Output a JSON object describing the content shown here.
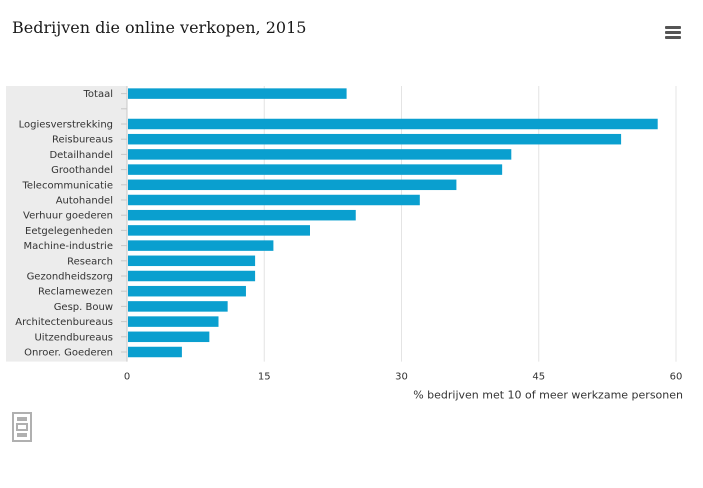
{
  "title": "Bedrijven die online verkopen, 2015",
  "menu_icon": "hamburger-menu-icon",
  "logo_icon": "cbs-logo-icon",
  "chart_data": {
    "type": "bar",
    "orientation": "horizontal",
    "title": "Bedrijven die online verkopen, 2015",
    "xlabel": "% bedrijven met 10 of meer werkzame personen",
    "ylabel": "",
    "xlim": [
      0,
      60
    ],
    "xticks": [
      0,
      15,
      30,
      45,
      60
    ],
    "grid": true,
    "bar_color": "#0a9fcf",
    "categories": [
      "Totaal",
      "",
      "Logiesverstrekking",
      "Reisbureaus",
      "Detailhandel",
      "Groothandel",
      "Telecommunicatie",
      "Autohandel",
      "Verhuur goederen",
      "Eetgelegenheden",
      "Machine-industrie",
      "Research",
      "Gezondheidszorg",
      "Reclamewezen",
      "Gesp. Bouw",
      "Architectenbureaus",
      "Uitzendbureaus",
      "Onroer. Goederen"
    ],
    "values": [
      24,
      null,
      58,
      54,
      42,
      41,
      36,
      32,
      25,
      20,
      16,
      14,
      14,
      13,
      11,
      10,
      9,
      6
    ]
  }
}
